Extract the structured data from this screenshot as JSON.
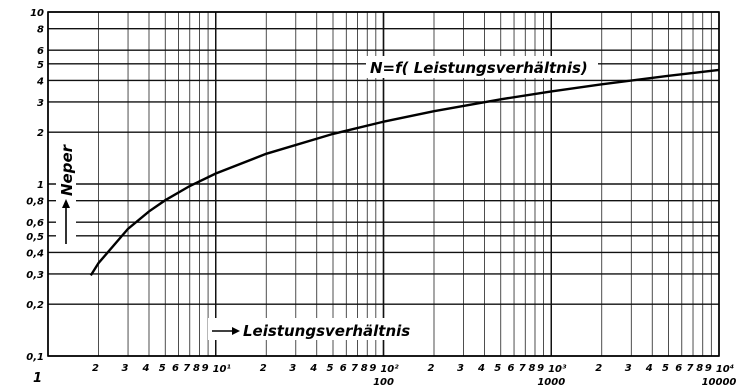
{
  "chart_data": {
    "type": "line",
    "title": "N=f( Leistungsverhältnis)",
    "xlabel": "Leistungsverhältnis",
    "ylabel": "Neper",
    "xscale": "log",
    "yscale": "log",
    "xlim": [
      1,
      10000
    ],
    "ylim": [
      0.1,
      10
    ],
    "grid": true,
    "x_ticks_minor": [
      "2",
      "3",
      "4",
      "5",
      "6",
      "7",
      "8",
      "9"
    ],
    "x_decade_labels": [
      {
        "value": 10,
        "power": "10¹",
        "plain": ""
      },
      {
        "value": 100,
        "power": "10²",
        "plain": "100"
      },
      {
        "value": 1000,
        "power": "10³",
        "plain": "1000"
      },
      {
        "value": 10000,
        "power": "10⁴",
        "plain": "10000"
      }
    ],
    "x_origin_label": "1",
    "y_tick_labels": [
      {
        "value": 0.1,
        "label": "0,1"
      },
      {
        "value": 0.2,
        "label": "0,2"
      },
      {
        "value": 0.3,
        "label": "0,3"
      },
      {
        "value": 0.4,
        "label": "0,4"
      },
      {
        "value": 0.5,
        "label": "0,5"
      },
      {
        "value": 0.6,
        "label": "0,6"
      },
      {
        "value": 0.8,
        "label": "0,8"
      },
      {
        "value": 1,
        "label": "1"
      },
      {
        "value": 2,
        "label": "2"
      },
      {
        "value": 3,
        "label": "3"
      },
      {
        "value": 4,
        "label": "4"
      },
      {
        "value": 5,
        "label": "5"
      },
      {
        "value": 6,
        "label": "6"
      },
      {
        "value": 8,
        "label": "8"
      },
      {
        "value": 10,
        "label": "10"
      }
    ],
    "series": [
      {
        "x": [
          1.8,
          2,
          3,
          4,
          5,
          7,
          10,
          20,
          50,
          100,
          200,
          500,
          1000,
          2000,
          5000,
          10000
        ],
        "y": [
          0.294,
          0.347,
          0.549,
          0.693,
          0.805,
          0.973,
          1.151,
          1.498,
          1.956,
          2.303,
          2.649,
          3.107,
          3.454,
          3.8,
          4.259,
          4.605
        ]
      }
    ]
  }
}
